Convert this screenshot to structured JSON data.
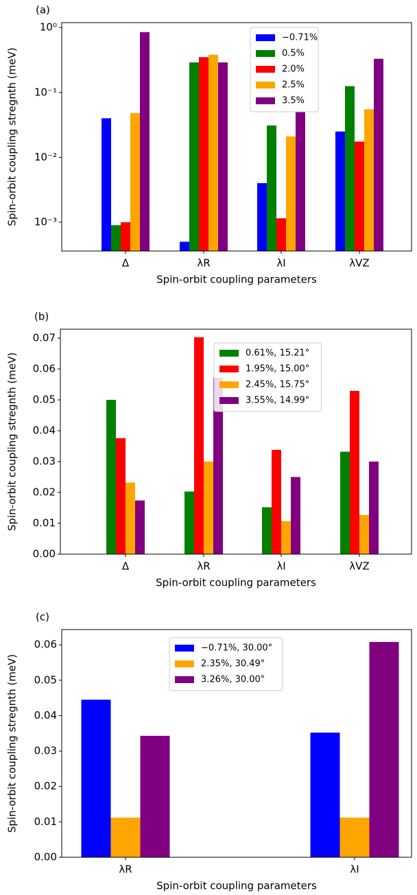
{
  "chart_data": [
    {
      "type": "bar",
      "title": "(a)",
      "x_label": "Spin-orbit coupling parameters",
      "y_label": "Spin-orbit coupling stregnth (meV)",
      "log_y": true,
      "ylim": [
        0.00036,
        1.19
      ],
      "yticks": [
        {
          "value": 0.001,
          "label": "10⁻³"
        },
        {
          "value": 0.01,
          "label": "10⁻²"
        },
        {
          "value": 0.1,
          "label": "10⁻¹"
        },
        {
          "value": 1,
          "label": "10⁰"
        }
      ],
      "legend": "upper right",
      "categories": [
        "Δ",
        "λR",
        "λI",
        "λVZ"
      ],
      "series": [
        {
          "name": "−0.71%",
          "color": "#0000ff",
          "values": [
            0.04,
            0.0005,
            0.004,
            0.025
          ]
        },
        {
          "name": "0.5%",
          "color": "#008000",
          "values": [
            0.0009,
            0.29,
            0.031,
            0.125
          ]
        },
        {
          "name": "2.0%",
          "color": "#ff0000",
          "values": [
            0.001,
            0.35,
            0.00115,
            0.0175
          ]
        },
        {
          "name": "2.5%",
          "color": "#ffa500",
          "values": [
            0.048,
            0.38,
            0.021,
            0.055
          ]
        },
        {
          "name": "3.5%",
          "color": "#800080",
          "values": [
            0.85,
            0.29,
            0.05,
            0.33
          ]
        }
      ]
    },
    {
      "type": "bar",
      "title": "(b)",
      "x_label": "Spin-orbit coupling parameters",
      "y_label": "Spin-orbit coupling stregnth (meV)",
      "log_y": false,
      "ylim": [
        0,
        0.0729
      ],
      "yticks": [
        {
          "value": 0,
          "label": "0.00"
        },
        {
          "value": 0.01,
          "label": "0.01"
        },
        {
          "value": 0.02,
          "label": "0.02"
        },
        {
          "value": 0.03,
          "label": "0.03"
        },
        {
          "value": 0.04,
          "label": "0.04"
        },
        {
          "value": 0.05,
          "label": "0.05"
        },
        {
          "value": 0.06,
          "label": "0.06"
        },
        {
          "value": 0.07,
          "label": "0.07"
        }
      ],
      "legend": "upper right",
      "categories": [
        "Δ",
        "λR",
        "λI",
        "λVZ"
      ],
      "series": [
        {
          "name": "0.61%, 15.21°",
          "color": "#008000",
          "values": [
            0.05,
            0.0203,
            0.0152,
            0.0332
          ]
        },
        {
          "name": "1.95%, 15.00°",
          "color": "#ff0000",
          "values": [
            0.0376,
            0.0703,
            0.0338,
            0.0529
          ]
        },
        {
          "name": "2.45%, 15.75°",
          "color": "#ffa500",
          "values": [
            0.0232,
            0.03,
            0.0107,
            0.0127
          ]
        },
        {
          "name": "3.55%, 14.99°",
          "color": "#800080",
          "values": [
            0.0174,
            0.0572,
            0.025,
            0.03
          ]
        }
      ]
    },
    {
      "type": "bar",
      "title": "(c)",
      "x_label": "Spin-orbit coupling parameters",
      "y_label": "Spin-orbit coupling stregnth (meV)",
      "log_y": false,
      "ylim": [
        0,
        0.0643
      ],
      "yticks": [
        {
          "value": 0,
          "label": "0.00"
        },
        {
          "value": 0.01,
          "label": "0.01"
        },
        {
          "value": 0.02,
          "label": "0.02"
        },
        {
          "value": 0.03,
          "label": "0.03"
        },
        {
          "value": 0.04,
          "label": "0.04"
        },
        {
          "value": 0.05,
          "label": "0.05"
        },
        {
          "value": 0.06,
          "label": "0.06"
        }
      ],
      "legend": "upper center",
      "categories": [
        "λR",
        "λI"
      ],
      "series": [
        {
          "name": "−0.71%, 30.00°",
          "color": "#0000ff",
          "values": [
            0.0445,
            0.0352
          ]
        },
        {
          "name": "2.35%, 30.49°",
          "color": "#ffa500",
          "values": [
            0.0112,
            0.0112
          ]
        },
        {
          "name": "3.26%, 30.00°",
          "color": "#800080",
          "values": [
            0.0343,
            0.0608
          ]
        }
      ]
    }
  ]
}
